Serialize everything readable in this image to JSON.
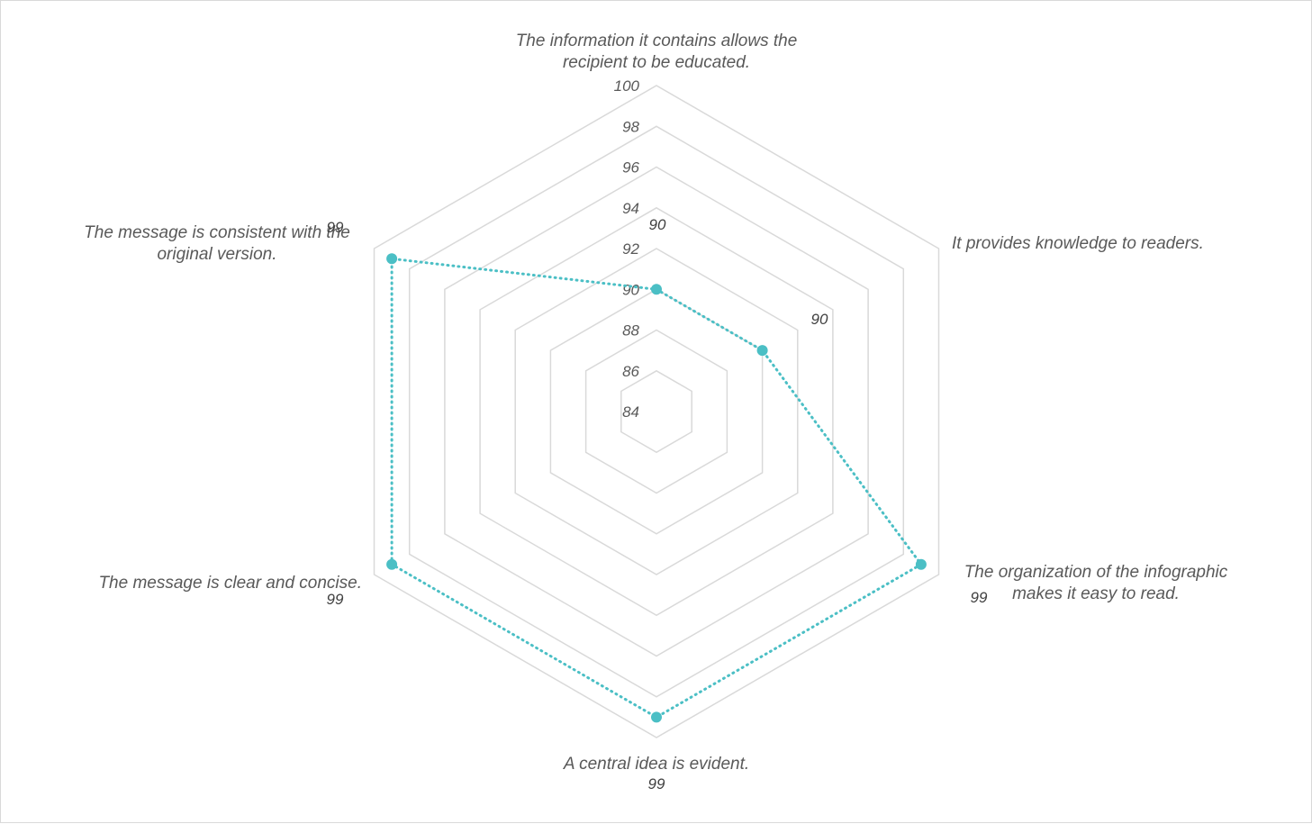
{
  "chart_data": {
    "type": "radar",
    "title": "",
    "categories": [
      [
        "The information it contains allows the",
        "recipient to be educated."
      ],
      [
        "It provides knowledge to readers."
      ],
      [
        "The organization of the infographic",
        "makes it easy to read."
      ],
      [
        "A central idea is evident."
      ],
      [
        "The message is clear and concise."
      ],
      [
        "The message is consistent with the",
        "original version."
      ]
    ],
    "series": [
      {
        "values": [
          90,
          90,
          99,
          99,
          99,
          99
        ]
      }
    ],
    "rlim": [
      84,
      100
    ],
    "ticks": [
      84,
      86,
      88,
      90,
      92,
      94,
      96,
      98,
      100
    ],
    "grid": true,
    "legend": "none",
    "line_style": "dotted",
    "series_color": "#4bbfc5",
    "grid_color": "#d9d9d9"
  }
}
